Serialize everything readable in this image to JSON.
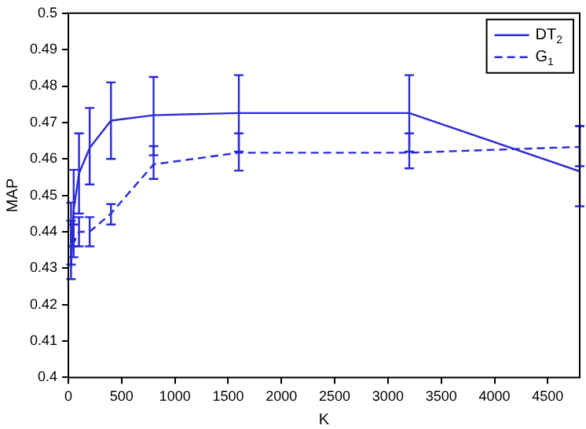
{
  "chart_data": {
    "type": "line",
    "xlabel": "K",
    "ylabel": "MAP",
    "x": [
      25,
      50,
      100,
      200,
      400,
      800,
      1600,
      3200,
      4800
    ],
    "series": [
      {
        "name": "DT$_{2}$",
        "color": "#2b2bd6",
        "line_style": "solid",
        "values": [
          0.43,
          0.446,
          0.456,
          0.463,
          0.4705,
          0.472,
          0.4726,
          0.4726,
          0.4566
        ],
        "errors": [
          [
            0.427,
            0.448
          ],
          [
            0.436,
            0.457
          ],
          [
            0.445,
            0.467
          ],
          [
            0.453,
            0.474
          ],
          [
            0.46,
            0.481
          ],
          [
            0.461,
            0.4825
          ],
          [
            0.462,
            0.483
          ],
          [
            0.462,
            0.483
          ],
          [
            0.447,
            0.469
          ]
        ]
      },
      {
        "name": "G$_{1}$",
        "color": "#2b2bd6",
        "line_style": "dashed",
        "values": [
          0.437,
          0.437,
          0.44,
          0.44,
          0.445,
          0.4585,
          0.4617,
          0.4617,
          0.4633
        ],
        "errors": [
          [
            0.431,
            0.443
          ],
          [
            0.433,
            0.442
          ],
          [
            0.436,
            0.444
          ],
          [
            0.436,
            0.444
          ],
          [
            0.442,
            0.4476
          ],
          [
            0.4545,
            0.4635
          ],
          [
            0.4568,
            0.467
          ],
          [
            0.4574,
            0.467
          ],
          [
            0.458,
            0.469
          ]
        ]
      }
    ],
    "xlim": [
      0,
      4800
    ],
    "xticks": [
      0,
      500,
      1000,
      1500,
      2000,
      2500,
      3000,
      3500,
      4000,
      4500
    ],
    "ylim": [
      0.4,
      0.5
    ],
    "yticks": [
      0.4,
      0.41,
      0.42,
      0.43,
      0.44,
      0.45,
      0.46,
      0.47,
      0.48,
      0.49,
      0.5
    ],
    "grid": false,
    "legend": "top right",
    "marker": "none"
  }
}
